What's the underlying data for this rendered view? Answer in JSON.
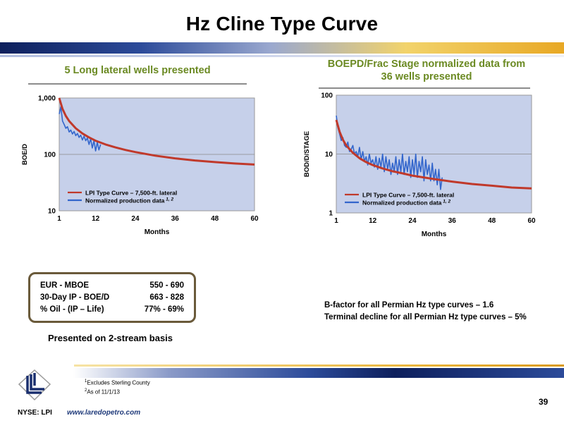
{
  "title": "Hz Cline Type Curve",
  "left_heading": "5 Long lateral wells presented",
  "right_heading_line1": "BOEPD/Frac Stage normalized data from",
  "right_heading_line2": "36 wells presented",
  "chart_data": [
    {
      "type": "line",
      "xlabel": "Months",
      "ylabel": "BOE/D",
      "y_scale": "log",
      "xlim": [
        1,
        60
      ],
      "ylim": [
        10,
        1000
      ],
      "x_ticks": [
        1,
        12,
        24,
        36,
        48,
        60
      ],
      "x_tick_labels": [
        "1",
        "12",
        "24",
        "36",
        "48",
        "60"
      ],
      "y_ticks": [
        10,
        100,
        1000
      ],
      "y_tick_labels": [
        "10",
        "100",
        "1,000"
      ],
      "grid": true,
      "plot_background": "#c6d0ea",
      "legend_position": "bottom-left",
      "series": [
        {
          "name": "LPI Type Curve – 7,500-ft. lateral",
          "color": "#c0392b",
          "x": [
            1,
            2,
            3,
            4,
            6,
            8,
            10,
            12,
            15,
            18,
            21,
            24,
            30,
            36,
            42,
            48,
            54,
            60
          ],
          "y": [
            1000,
            640,
            480,
            390,
            290,
            235,
            200,
            175,
            150,
            133,
            120,
            110,
            95,
            85,
            78,
            73,
            69,
            66
          ]
        },
        {
          "name": "Normalized production data",
          "name_superscript": "1, 2",
          "color": "#3366cc",
          "x": [
            1,
            1.5,
            2,
            2.5,
            3,
            3.5,
            4,
            4.5,
            5,
            5.5,
            6,
            6.5,
            7,
            7.5,
            8,
            8.5,
            9,
            9.5,
            10,
            10.5,
            11,
            11.5,
            12,
            12.5,
            13,
            13.5
          ],
          "y": [
            520,
            700,
            390,
            340,
            290,
            310,
            250,
            270,
            230,
            255,
            215,
            235,
            200,
            220,
            180,
            210,
            175,
            195,
            150,
            190,
            130,
            175,
            115,
            165,
            120,
            150
          ]
        }
      ]
    },
    {
      "type": "line",
      "xlabel": "Months",
      "ylabel": "BOD/D/STAGE",
      "y_scale": "log",
      "xlim": [
        1,
        60
      ],
      "ylim": [
        1,
        100
      ],
      "x_ticks": [
        1,
        12,
        24,
        36,
        48,
        60
      ],
      "x_tick_labels": [
        "1",
        "12",
        "24",
        "36",
        "48",
        "60"
      ],
      "y_ticks": [
        1,
        10,
        100
      ],
      "y_tick_labels": [
        "1",
        "10",
        "100"
      ],
      "grid": true,
      "plot_background": "#c6d0ea",
      "legend_position": "bottom-left",
      "series": [
        {
          "name": "LPI Type Curve – 7,500-ft. lateral",
          "color": "#c0392b",
          "x": [
            1,
            2,
            3,
            4,
            6,
            8,
            10,
            12,
            15,
            18,
            21,
            24,
            30,
            36,
            42,
            48,
            54,
            60
          ],
          "y": [
            38,
            24,
            17.5,
            14,
            10.5,
            8.5,
            7.3,
            6.5,
            5.7,
            5.1,
            4.7,
            4.3,
            3.8,
            3.4,
            3.1,
            2.9,
            2.7,
            2.6
          ]
        },
        {
          "name": "Normalized production data",
          "name_superscript": "1, 2",
          "color": "#3366cc",
          "x": [
            1,
            1.5,
            2,
            2.5,
            3,
            3.5,
            4,
            4.5,
            5,
            5.5,
            6,
            6.5,
            7,
            7.5,
            8,
            8.5,
            9,
            9.5,
            10,
            10.5,
            11,
            11.5,
            12,
            12.5,
            13,
            13.5,
            14,
            14.5,
            15,
            15.5,
            16,
            16.5,
            17,
            17.5,
            18,
            18.5,
            19,
            19.5,
            20,
            20.5,
            21,
            21.5,
            22,
            22.5,
            23,
            23.5,
            24,
            24.5,
            25,
            25.5,
            26,
            26.5,
            27,
            27.5,
            28,
            28.5,
            29,
            29.5,
            30,
            30.5,
            31,
            31.5,
            32,
            32.5,
            33
          ],
          "y": [
            45,
            28,
            22,
            17,
            19,
            14,
            13,
            16,
            11,
            12,
            14,
            10,
            11,
            9,
            13,
            8,
            11,
            7.5,
            9,
            6.5,
            10,
            7,
            8,
            6,
            9,
            5.5,
            8.5,
            6,
            10,
            5,
            9,
            5.5,
            8,
            4.5,
            7,
            5,
            9,
            4.5,
            8,
            5,
            10,
            4.5,
            7.5,
            5,
            9,
            4,
            8,
            4.5,
            10,
            4,
            7.5,
            5,
            9,
            3.5,
            8,
            4.5,
            6.5,
            3.5,
            7,
            3.5,
            5.5,
            3,
            5.5,
            2.5,
            4
          ]
        }
      ]
    }
  ],
  "info_box": {
    "rows": [
      {
        "label": "EUR - MBOE",
        "value": "550 - 690"
      },
      {
        "label": "30-Day IP - BOE/D",
        "value": "663 - 828"
      },
      {
        "label": "% Oil - (IP – Life)",
        "value": "77% - 69%"
      }
    ]
  },
  "basis_note": "Presented on 2-stream basis",
  "bfactor_line1": "B-factor for all Permian Hz type curves – 1.6",
  "bfactor_line2": "Terminal decline for all Permian Hz type curves – 5%",
  "footnote1_sup": "1",
  "footnote1_text": "Excludes Sterling County",
  "footnote2_sup": "2",
  "footnote2_text": "As of 11/1/13",
  "page_number": "39",
  "ticker": "NYSE: LPI",
  "website": "www.laredopetro.com",
  "colors": {
    "heading_green": "#6b8a23",
    "type_curve_red": "#c0392b",
    "production_blue": "#3366cc",
    "plot_background": "#c6d0ea"
  }
}
